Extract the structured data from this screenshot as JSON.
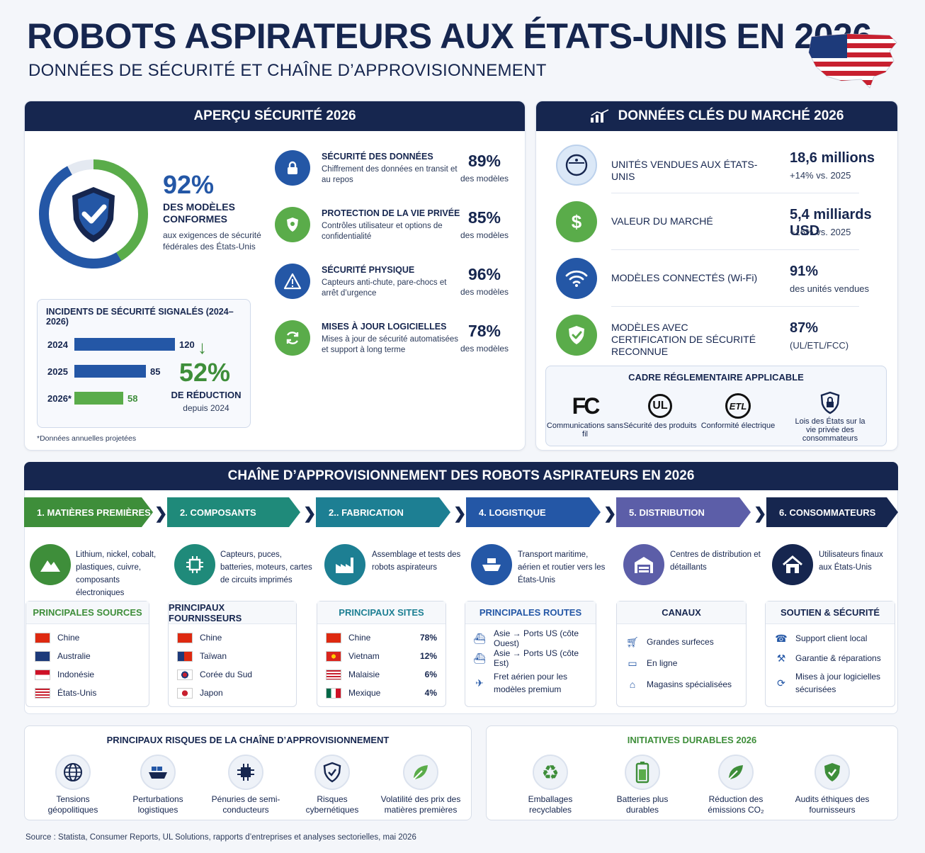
{
  "header": {
    "title": "ROBOTS ASPIRATEURS AUX ÉTATS-UNIS EN 2026",
    "subtitle": "DONNÉES DE SÉCURITÉ ET CHAÎNE D’APPROVISIONNEMENT"
  },
  "safety": {
    "heading": "APERÇU SÉCURITÉ 2026",
    "compliance_pct": "92%",
    "compliance_fraction": 0.92,
    "compliance_label": "DES MODÈLES CONFORMES",
    "compliance_desc": "aux exigences de sécurité fédérales des États-Unis",
    "items": [
      {
        "title": "SÉCURITÉ DES DONNÉES",
        "desc": "Chiffrement des données en transit et au repos",
        "pct": "89%",
        "unit": "des modèles",
        "icon": "lock-icon"
      },
      {
        "title": "PROTECTION DE LA VIE PRIVÉE",
        "desc": "Contrôles utilisateur et options de confidentialité",
        "pct": "85%",
        "unit": "des modèles",
        "icon": "privacy-shield-icon"
      },
      {
        "title": "SÉCURITÉ PHYSIQUE",
        "desc": "Capteurs anti-chute, pare-chocs et arrêt d’urgence",
        "pct": "96%",
        "unit": "des modèles",
        "icon": "warning-icon"
      },
      {
        "title": "MISES À JOUR LOGICIELLES",
        "desc": "Mises à jour de sécurité automatisées et support à long terme",
        "pct": "78%",
        "unit": "des modèles",
        "icon": "refresh-icon"
      }
    ],
    "incidents": {
      "title": "INCIDENTS DE SÉCURITÉ SIGNALÉS (2024–2026)",
      "rows": [
        {
          "year": "2024",
          "value": 120,
          "color": "#2457a6"
        },
        {
          "year": "2025",
          "value": 85,
          "color": "#2457a6"
        },
        {
          "year": "2026*",
          "value": 58,
          "color": "#5aac4a"
        }
      ],
      "reduction": "52%",
      "reduction_label": "DE RÉDUCTION",
      "reduction_since": "depuis 2024"
    },
    "footnote": "*Données annuelles projetées"
  },
  "market": {
    "heading": "DONNÉES CLÉS DU MARCHÉ 2026",
    "items": [
      {
        "label": "UNITÉS VENDUES AUX ÉTATS-UNIS",
        "value": "18,6 millions",
        "sub": "+14% vs. 2025",
        "icon": "robot-vacuum-icon",
        "color": "#dbe8f7"
      },
      {
        "label": "VALEUR DU MARCHÉ",
        "value": "5,4 milliards USD",
        "sub": "+16% vs. 2025",
        "icon": "dollar-icon",
        "color": "#5aac4a"
      },
      {
        "label": "MODÈLES CONNECTÉS (Wi-Fi)",
        "value": "91%",
        "sub": "des unités vendues",
        "icon": "wifi-icon",
        "color": "#2457a6"
      },
      {
        "label": "MODÈLES AVEC CERTIFICATION DE SÉCURITÉ RECONNUE",
        "value": "87%",
        "sub": "(UL/ETL/FCC)",
        "icon": "certified-shield-icon",
        "color": "#5aac4a"
      }
    ],
    "regulatory": {
      "title": "CADRE RÉGLEMENTAIRE APPLICABLE",
      "items": [
        {
          "logo": "FC",
          "label": "Communications sans fil"
        },
        {
          "logo": "UL",
          "label": "Sécurité des produits"
        },
        {
          "logo": "ETL",
          "label": "Conformité électrique"
        },
        {
          "logo": "",
          "label": "Lois des États sur la vie privée des consommateurs"
        }
      ]
    }
  },
  "supply_chain": {
    "heading": "CHAÎNE D’APPROVISIONNEMENT DES ROBOTS ASPIRATEURS EN 2026",
    "steps": [
      {
        "label": "1. MATIÈRES PREMIÈRES",
        "color": "#3e8e3a",
        "icon": "mountain-icon",
        "desc": "Lithium, nickel, cobalt, plastiques, cuivre, composants électroniques"
      },
      {
        "label": "2. COMPOSANTS",
        "color": "#1f8a7a",
        "icon": "chip-icon",
        "desc": "Capteurs, puces, batteries, moteurs, cartes de circuits imprimés"
      },
      {
        "label": "2.. FABRICATION",
        "color": "#1d7f93",
        "icon": "factory-icon",
        "desc": "Assemblage et tests des robots aspirateurs"
      },
      {
        "label": "4. LOGISTIQUE",
        "color": "#2457a6",
        "icon": "ship-icon",
        "desc": "Transport maritime, aérien et routier vers les États-Unis"
      },
      {
        "label": "5. DISTRIBUTION",
        "color": "#5c5ea8",
        "icon": "warehouse-icon",
        "desc": "Centres de distribution et détaillants"
      },
      {
        "label": "6. CONSOMMATEURS",
        "color": "#16264f",
        "icon": "home-icon",
        "desc": "Utilisateurs finaux aux États-Unis"
      }
    ],
    "cards": [
      {
        "title": "PRINCIPALES SOURCES",
        "color": "#3e8e3a",
        "rows": [
          {
            "name": "Chine",
            "flag": "cn"
          },
          {
            "name": "Australie",
            "flag": "au"
          },
          {
            "name": "Indonésie",
            "flag": "id"
          },
          {
            "name": "États-Unis",
            "flag": "us"
          }
        ]
      },
      {
        "title": "PRINCIPAUX FOURNISSEURS",
        "color": "#16264f",
        "rows": [
          {
            "name": "Chine",
            "flag": "cn"
          },
          {
            "name": "Taïwan",
            "flag": "tw"
          },
          {
            "name": "Corée du Sud",
            "flag": "kr"
          },
          {
            "name": "Japon",
            "flag": "jp"
          }
        ]
      },
      {
        "title": "PRINCIPAUX SITES",
        "color": "#1d7f93",
        "rows": [
          {
            "name": "Chine",
            "flag": "cn",
            "pct": "78%"
          },
          {
            "name": "Vietnam",
            "flag": "vn",
            "pct": "12%"
          },
          {
            "name": "Malaisie",
            "flag": "my",
            "pct": "6%"
          },
          {
            "name": "Mexique",
            "flag": "mx",
            "pct": "4%"
          }
        ]
      },
      {
        "title": "PRINCIPALES ROUTES",
        "color": "#2457a6",
        "rows": [
          {
            "name": "Asie → Ports US (côte Ouest)",
            "icon": "ship-icon"
          },
          {
            "name": "Asie → Ports US (côte Est)",
            "icon": "ship-icon"
          },
          {
            "name": "Fret aérien pour les modèles premium",
            "icon": "plane-icon"
          }
        ]
      },
      {
        "title": "CANAUX",
        "color": "#16264f",
        "rows": [
          {
            "name": "Grandes surfeces",
            "icon": "cart-icon"
          },
          {
            "name": "En ligne",
            "icon": "monitor-icon"
          },
          {
            "name": "Magasins spécialisées",
            "icon": "store-icon"
          }
        ]
      },
      {
        "title": "SOUTIEN & SÉCURITÉ",
        "color": "#16264f",
        "rows": [
          {
            "name": "Support client local",
            "icon": "headset-icon"
          },
          {
            "name": "Garantie & réparations",
            "icon": "wrench-icon"
          },
          {
            "name": "Mises à jour logicielles sécurisées",
            "icon": "update-icon"
          }
        ]
      }
    ]
  },
  "risks": {
    "title": "PRINCIPAUX RISQUES DE LA CHAÎNE D’APPROVISIONNEMENT",
    "items": [
      {
        "label": "Tensions géopolitiques",
        "icon": "globe-icon"
      },
      {
        "label": "Perturbations logistiques",
        "icon": "ship-icon"
      },
      {
        "label": "Pénuries de semi-conducteurs",
        "icon": "chip-icon"
      },
      {
        "label": "Risques cybernétiques",
        "icon": "shield-icon"
      },
      {
        "label": "Volatilité des prix des matières premières",
        "icon": "leaf-icon"
      }
    ]
  },
  "initiatives": {
    "title": "INITIATIVES DURABLES 2026",
    "items": [
      {
        "label": "Emballages recyclables",
        "icon": "recycle-icon"
      },
      {
        "label": "Batteries plus durables",
        "icon": "battery-icon"
      },
      {
        "label": "Réduction des émissions CO₂",
        "icon": "leaf-icon"
      },
      {
        "label": "Audits éthiques des fournisseurs",
        "icon": "shield-check-icon"
      }
    ]
  },
  "source": "Source : Statista, Consumer Reports, UL Solutions, rapports d’entreprises et analyses sectorielles, mai 2026",
  "colors": {
    "navy": "#16264f",
    "blue": "#2457a6",
    "green": "#3e8e3a"
  }
}
